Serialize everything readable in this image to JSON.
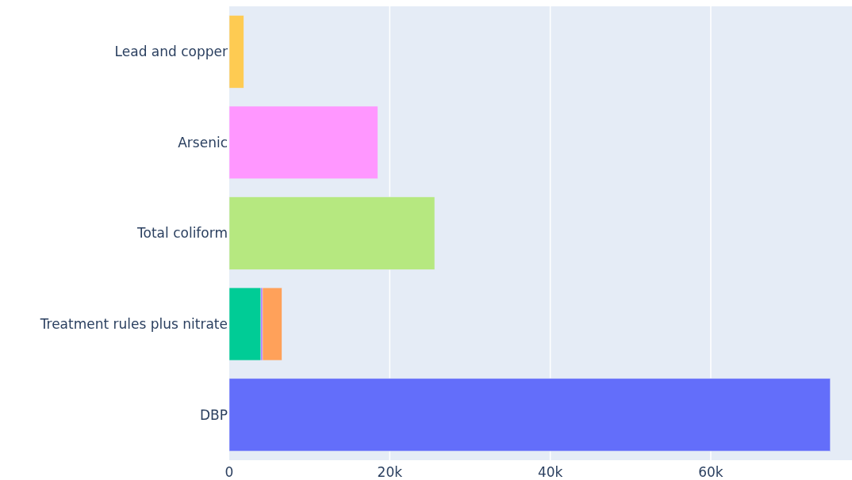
{
  "chart_data": {
    "type": "bar",
    "orientation": "horizontal",
    "stacked": true,
    "categories": [
      "Lead and copper",
      "Arsenic",
      "Total coliform",
      "Treatment rules plus nitrate",
      "DBP"
    ],
    "series": [
      {
        "color": "#636efa",
        "values": [
          null,
          null,
          null,
          null,
          74900
        ]
      },
      {
        "color": "#00cc96",
        "values": [
          null,
          null,
          null,
          3950,
          null
        ]
      },
      {
        "color": "#ab63fa",
        "values": [
          null,
          null,
          null,
          200,
          null
        ]
      },
      {
        "color": "#ffa15a",
        "values": [
          null,
          null,
          null,
          2400,
          null
        ]
      },
      {
        "color": "#b6e880",
        "values": [
          null,
          null,
          25600,
          null,
          null
        ]
      },
      {
        "color": "#ff97ff",
        "values": [
          null,
          18500,
          null,
          null,
          null
        ]
      },
      {
        "color": "#fecb52",
        "values": [
          1800,
          null,
          null,
          null,
          null
        ]
      }
    ],
    "xlim": [
      0,
      77600
    ],
    "xticks": [
      0,
      {
        "value": 20000,
        "label": "20k"
      },
      {
        "value": 40000,
        "label": "40k"
      },
      {
        "value": 60000,
        "label": "60k"
      }
    ],
    "grid": "x"
  }
}
